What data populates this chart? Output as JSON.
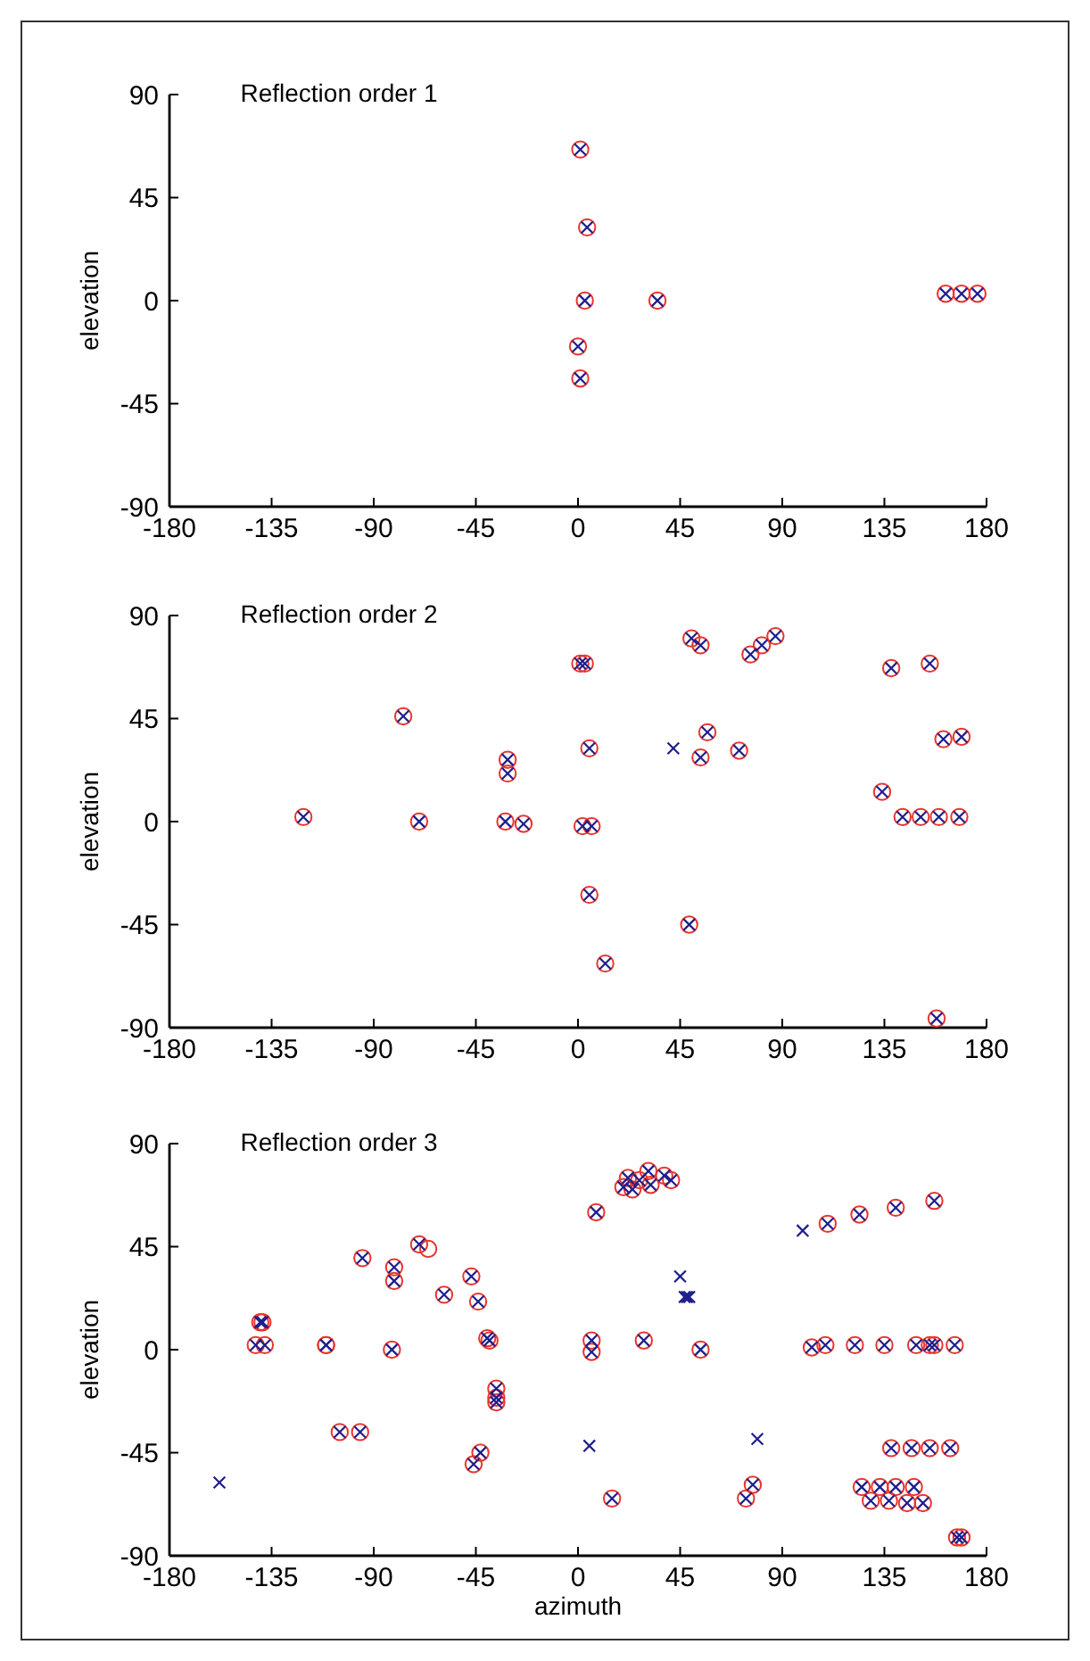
{
  "chart_data": [
    {
      "type": "scatter",
      "title": "Reflection order 1",
      "ylabel": "elevation",
      "xlim": [
        -180,
        180
      ],
      "xticks": [
        -180,
        -135,
        -90,
        -45,
        0,
        45,
        90,
        135,
        180
      ],
      "ylim": [
        -90,
        90
      ],
      "yticks": [
        -90,
        -45,
        0,
        45,
        90
      ],
      "grid": false,
      "series": [
        {
          "color": "#e8352e",
          "marker": "circle",
          "x": [
            1,
            4,
            3,
            35,
            0,
            1,
            162,
            169,
            176
          ],
          "values": [
            66,
            32,
            0,
            0,
            -20,
            -34,
            3,
            3,
            3
          ]
        },
        {
          "color": "#1e1e8c",
          "marker": "cross",
          "x": [
            1,
            4,
            3,
            35,
            0,
            1,
            162,
            169,
            176
          ],
          "values": [
            66,
            32,
            0,
            0,
            -20,
            -34,
            3,
            3,
            3
          ]
        }
      ]
    },
    {
      "type": "scatter",
      "title": "Reflection order 2",
      "ylabel": "elevation",
      "xlim": [
        -180,
        180
      ],
      "xticks": [
        -180,
        -135,
        -90,
        -45,
        0,
        45,
        90,
        135,
        180
      ],
      "ylim": [
        -90,
        90
      ],
      "yticks": [
        -90,
        -45,
        0,
        45,
        90
      ],
      "grid": false,
      "series": [
        {
          "color": "#e8352e",
          "marker": "circle",
          "x": [
            -121,
            -77,
            -70,
            -32,
            -31,
            -31,
            -24,
            1,
            3,
            2,
            6,
            5,
            5,
            12,
            49,
            50,
            54,
            57,
            54,
            71,
            76,
            81,
            87,
            134,
            138,
            155,
            143,
            151,
            159,
            168,
            161,
            169,
            158
          ],
          "values": [
            2,
            46,
            0,
            0,
            27,
            21,
            -1,
            69,
            69,
            -2,
            -2,
            32,
            -32,
            -62,
            -45,
            80,
            77,
            39,
            28,
            31,
            73,
            77,
            81,
            13,
            67,
            69,
            2,
            2,
            2,
            2,
            36,
            37,
            -86
          ]
        },
        {
          "color": "#1e1e8c",
          "marker": "cross",
          "x": [
            -121,
            -77,
            -70,
            -32,
            -31,
            -31,
            -24,
            1,
            3,
            2,
            6,
            5,
            5,
            12,
            49,
            50,
            54,
            57,
            54,
            71,
            76,
            81,
            87,
            134,
            138,
            155,
            143,
            151,
            159,
            168,
            161,
            169,
            158,
            42
          ],
          "values": [
            2,
            46,
            0,
            0,
            27,
            21,
            -1,
            69,
            69,
            -2,
            -2,
            32,
            -32,
            -62,
            -45,
            80,
            77,
            39,
            28,
            31,
            73,
            77,
            81,
            13,
            67,
            69,
            2,
            2,
            2,
            2,
            36,
            37,
            -86,
            32
          ]
        }
      ]
    },
    {
      "type": "scatter",
      "title": "Reflection order 3",
      "xlabel": "azimuth",
      "ylabel": "elevation",
      "xlim": [
        -180,
        180
      ],
      "xticks": [
        -180,
        -135,
        -90,
        -45,
        0,
        45,
        90,
        135,
        180
      ],
      "ylim": [
        -90,
        90
      ],
      "yticks": [
        -90,
        -45,
        0,
        45,
        90
      ],
      "grid": false,
      "series": [
        {
          "color": "#e8352e",
          "marker": "circle",
          "x": [
            -142,
            -138,
            -140,
            -139,
            -111,
            -111,
            -105,
            -96,
            -95,
            -82,
            -81,
            -81,
            -70,
            -66,
            -59,
            -47,
            -44,
            -40,
            -39,
            -36,
            -36,
            -36,
            -43,
            -46,
            8,
            20,
            22,
            24,
            27,
            31,
            32,
            38,
            41,
            6,
            6,
            29,
            54,
            110,
            124,
            140,
            157,
            103,
            109,
            122,
            135,
            149,
            155,
            157,
            166,
            15,
            77,
            74,
            138,
            147,
            155,
            164,
            125,
            133,
            140,
            148,
            129,
            137,
            145,
            152,
            167,
            169
          ],
          "values": [
            2,
            2,
            12,
            12,
            2,
            2,
            -36,
            -36,
            40,
            0,
            36,
            30,
            46,
            44,
            24,
            32,
            21,
            5,
            4,
            -17,
            -21,
            -23,
            -45,
            -50,
            60,
            71,
            75,
            70,
            74,
            78,
            72,
            76,
            74,
            4,
            -1,
            4,
            0,
            55,
            59,
            62,
            65,
            1,
            2,
            2,
            2,
            2,
            2,
            2,
            2,
            -65,
            -59,
            -65,
            -43,
            -43,
            -43,
            -43,
            -60,
            -60,
            -60,
            -60,
            -66,
            -66,
            -67,
            -67,
            -82,
            -82
          ]
        },
        {
          "color": "#1e1e8c",
          "marker": "cross",
          "x": [
            -142,
            -138,
            -140,
            -139,
            -111,
            -111,
            -105,
            -96,
            -95,
            -82,
            -81,
            -81,
            -70,
            -59,
            -47,
            -44,
            -40,
            -39,
            -36,
            -36,
            -36,
            -43,
            -46,
            8,
            20,
            22,
            24,
            27,
            31,
            32,
            38,
            41,
            6,
            6,
            29,
            54,
            110,
            124,
            140,
            157,
            103,
            109,
            122,
            135,
            149,
            155,
            157,
            166,
            15,
            77,
            74,
            138,
            147,
            155,
            164,
            125,
            133,
            140,
            148,
            129,
            137,
            145,
            152,
            167,
            169,
            -158,
            45,
            47,
            48,
            49,
            99,
            5,
            79
          ],
          "values": [
            2,
            2,
            12,
            12,
            2,
            2,
            -36,
            -36,
            40,
            0,
            36,
            30,
            46,
            24,
            32,
            21,
            5,
            4,
            -17,
            -21,
            -23,
            -45,
            -50,
            60,
            71,
            75,
            70,
            74,
            78,
            72,
            76,
            74,
            4,
            -1,
            4,
            0,
            55,
            59,
            62,
            65,
            1,
            2,
            2,
            2,
            2,
            2,
            2,
            2,
            -65,
            -59,
            -65,
            -43,
            -43,
            -43,
            -43,
            -60,
            -60,
            -60,
            -60,
            -66,
            -66,
            -67,
            -67,
            -82,
            -82,
            -58,
            32,
            23,
            23,
            23,
            52,
            -42,
            -39
          ]
        }
      ]
    }
  ]
}
